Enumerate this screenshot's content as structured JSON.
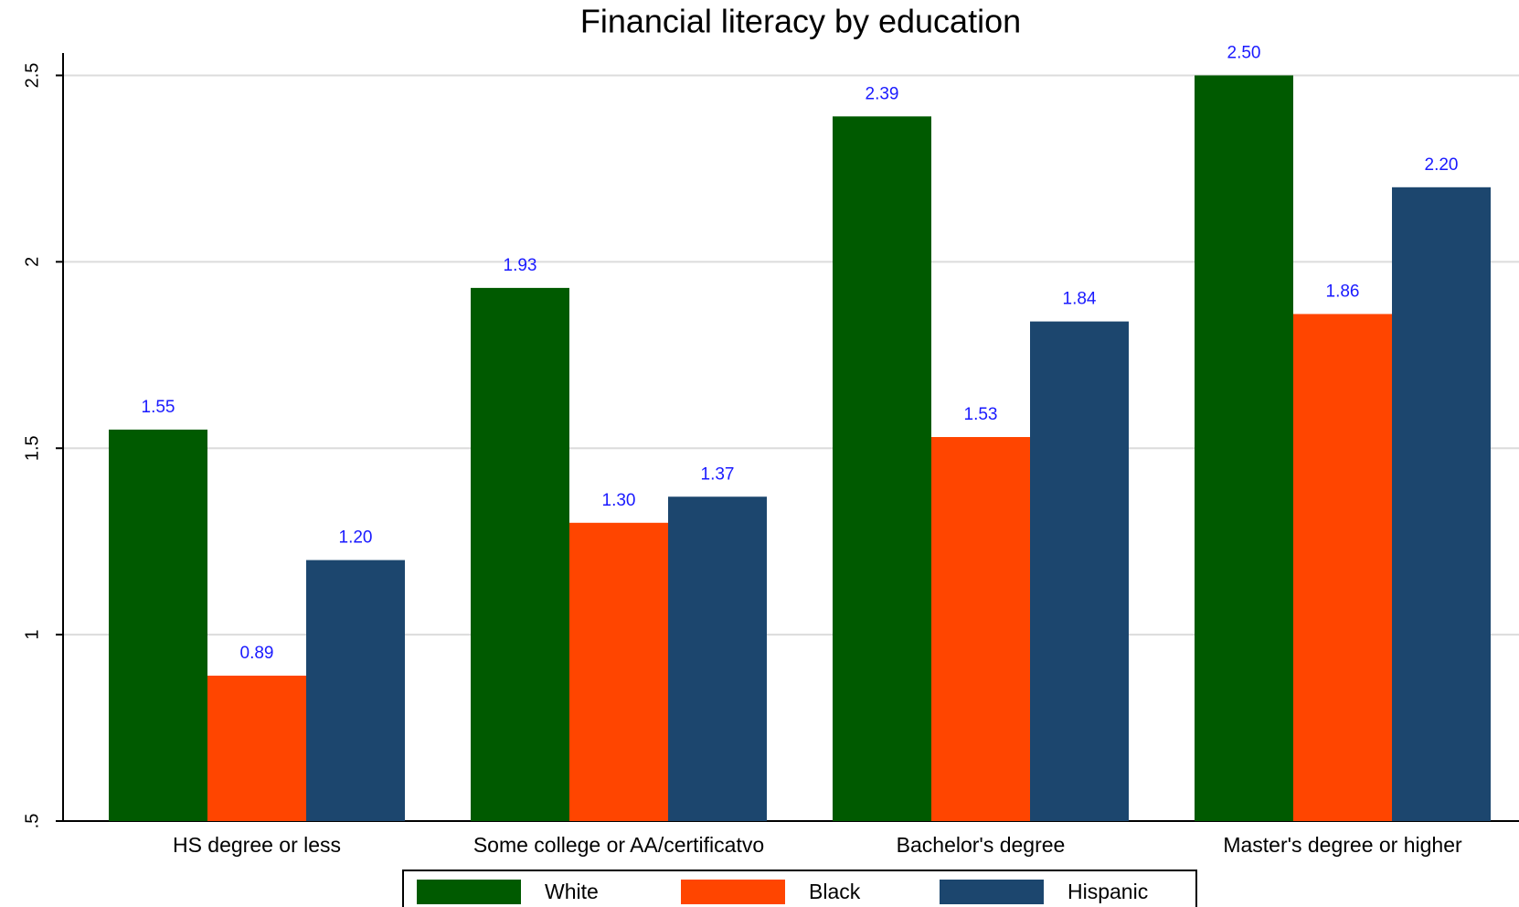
{
  "chart_data": {
    "type": "bar",
    "title": "Financial literacy by education",
    "categories": [
      "HS degree or less",
      "Some college or AA/certificatvo",
      "Bachelor's degree",
      "Master's degree or higher"
    ],
    "series": [
      {
        "name": "White",
        "color": "#005a00",
        "values": [
          1.55,
          1.93,
          2.39,
          2.5
        ],
        "value_labels": [
          "1.55",
          "1.93",
          "2.39",
          "2.50"
        ]
      },
      {
        "name": "Black",
        "color": "#ff4500",
        "values": [
          0.89,
          1.3,
          1.53,
          1.86
        ],
        "value_labels": [
          "0.89",
          "1.30",
          "1.53",
          "1.86"
        ]
      },
      {
        "name": "Hispanic",
        "color": "#1c466e",
        "values": [
          1.2,
          1.37,
          1.84,
          2.2
        ],
        "value_labels": [
          "1.20",
          "1.37",
          "1.84",
          "2.20"
        ]
      }
    ],
    "ylim": [
      0.5,
      2.56
    ],
    "yticks": [
      {
        "value": 0.5,
        "label": ".5"
      },
      1,
      1.5,
      2,
      2.5
    ],
    "grid": true
  }
}
